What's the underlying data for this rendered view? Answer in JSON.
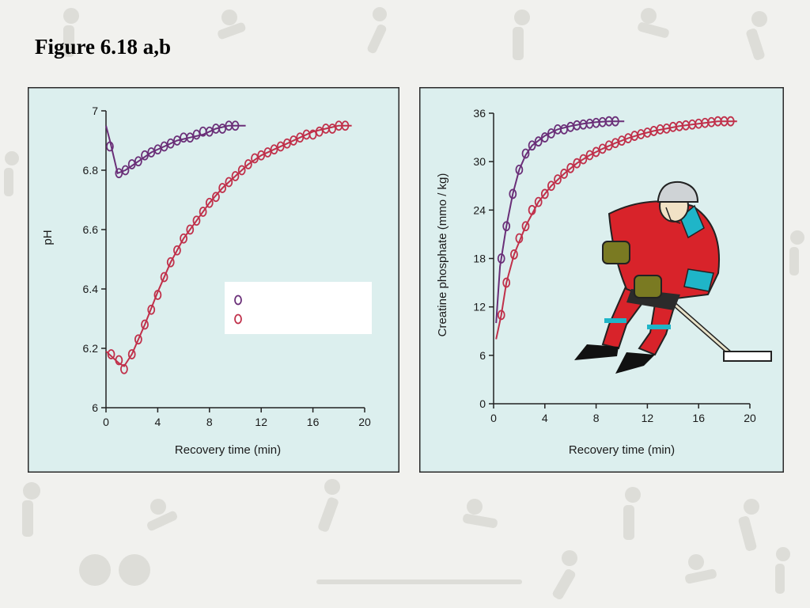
{
  "slide": {
    "title": "Figure 6.18 a,b"
  },
  "colors": {
    "panel_bg": "#dcefee",
    "panel_border": "#2a2a2a",
    "series_purple": "#6a2f78",
    "series_red": "#c0304a",
    "legend_bg": "#ffffff"
  },
  "illustration": {
    "name": "hockey-player-icon"
  },
  "chart_data": [
    {
      "id": "a",
      "type": "scatter",
      "title": "",
      "xlabel": "Recovery time (min)",
      "ylabel": "pH",
      "xlim": [
        0,
        20
      ],
      "ylim": [
        6,
        7
      ],
      "xticks": [
        "0",
        "4",
        "8",
        "12",
        "16",
        "20"
      ],
      "yticks": [
        "6",
        "6.2",
        "6.4",
        "6.6",
        "6.8",
        "7"
      ],
      "legend": {
        "placement": "center-right",
        "entries": []
      },
      "series": [
        {
          "color": "#6a2f78",
          "x": [
            0.3,
            1.0,
            1.5,
            2.0,
            2.5,
            3.0,
            3.5,
            4.0,
            4.5,
            5.0,
            5.5,
            6.0,
            6.5,
            7.0,
            7.5,
            8.0,
            8.5,
            9.0,
            9.5,
            10.0
          ],
          "y": [
            6.88,
            6.79,
            6.8,
            6.82,
            6.83,
            6.85,
            6.86,
            6.87,
            6.88,
            6.89,
            6.9,
            6.91,
            6.91,
            6.92,
            6.93,
            6.93,
            6.94,
            6.94,
            6.95,
            6.95
          ],
          "curve_x": [
            0,
            0.3,
            0.9,
            1.5,
            2.5,
            3.5,
            4.5,
            5.5,
            6.5,
            7.5,
            8.5,
            9.5,
            10.8
          ],
          "curve_y": [
            6.95,
            6.9,
            6.79,
            6.8,
            6.83,
            6.86,
            6.88,
            6.9,
            6.91,
            6.92,
            6.94,
            6.95,
            6.95
          ]
        },
        {
          "color": "#c0304a",
          "x": [
            0.4,
            1.0,
            1.4,
            2.0,
            2.5,
            3.0,
            3.5,
            4.0,
            4.5,
            5.0,
            5.5,
            6.0,
            6.5,
            7.0,
            7.5,
            8.0,
            8.5,
            9.0,
            9.5,
            10.0,
            10.5,
            11.0,
            11.5,
            12.0,
            12.5,
            13.0,
            13.5,
            14.0,
            14.5,
            15.0,
            15.5,
            16.0,
            16.5,
            17.0,
            17.5,
            18.0,
            18.5
          ],
          "y": [
            6.18,
            6.16,
            6.13,
            6.18,
            6.23,
            6.28,
            6.33,
            6.38,
            6.44,
            6.49,
            6.53,
            6.57,
            6.6,
            6.63,
            6.66,
            6.69,
            6.71,
            6.74,
            6.76,
            6.78,
            6.8,
            6.82,
            6.84,
            6.85,
            6.86,
            6.87,
            6.88,
            6.89,
            6.9,
            6.91,
            6.92,
            6.92,
            6.93,
            6.94,
            6.94,
            6.95,
            6.95
          ],
          "curve_x": [
            0,
            0.5,
            1.0,
            1.4,
            2.0,
            3.0,
            4.0,
            5.0,
            6.0,
            7.0,
            8.0,
            9.0,
            10.0,
            11.0,
            12.0,
            13.0,
            14.0,
            15.0,
            16.0,
            17.0,
            18.0,
            19.0
          ],
          "curve_y": [
            6.19,
            6.17,
            6.15,
            6.14,
            6.18,
            6.28,
            6.39,
            6.49,
            6.57,
            6.63,
            6.69,
            6.74,
            6.78,
            6.82,
            6.85,
            6.87,
            6.89,
            6.91,
            6.93,
            6.94,
            6.95,
            6.95
          ]
        }
      ]
    },
    {
      "id": "b",
      "type": "scatter",
      "title": "",
      "xlabel": "Recovery time (min)",
      "ylabel": "Creatine phosphate (mmo / kg)",
      "xlim": [
        0,
        20
      ],
      "ylim": [
        0,
        36
      ],
      "xticks": [
        "0",
        "4",
        "8",
        "12",
        "16",
        "20"
      ],
      "yticks": [
        "0",
        "6",
        "12",
        "18",
        "24",
        "30",
        "36"
      ],
      "series": [
        {
          "color": "#6a2f78",
          "x": [
            0.6,
            1.0,
            1.5,
            2.0,
            2.5,
            3.0,
            3.5,
            4.0,
            4.5,
            5.0,
            5.5,
            6.0,
            6.5,
            7.0,
            7.5,
            8.0,
            8.5,
            9.0,
            9.5
          ],
          "y": [
            18,
            22,
            26,
            29,
            31,
            32,
            32.5,
            33,
            33.5,
            34,
            34,
            34.3,
            34.5,
            34.6,
            34.7,
            34.8,
            34.9,
            35,
            35
          ],
          "curve_x": [
            0.2,
            0.5,
            1.0,
            1.5,
            2.0,
            2.5,
            3.0,
            4.0,
            5.0,
            6.0,
            7.0,
            8.0,
            9.0,
            10.2
          ],
          "curve_y": [
            10,
            17,
            22,
            26,
            29,
            30.8,
            32,
            33.2,
            34,
            34.4,
            34.7,
            34.9,
            35,
            35
          ]
        },
        {
          "color": "#c0304a",
          "x": [
            0.6,
            1.0,
            1.6,
            2.0,
            2.5,
            3.0,
            3.5,
            4.0,
            4.5,
            5.0,
            5.5,
            6.0,
            6.5,
            7.0,
            7.5,
            8.0,
            8.5,
            9.0,
            9.5,
            10.0,
            10.5,
            11.0,
            11.5,
            12.0,
            12.5,
            13.0,
            13.5,
            14.0,
            14.5,
            15.0,
            15.5,
            16.0,
            16.5,
            17.0,
            17.5,
            18.0,
            18.5
          ],
          "y": [
            11,
            15,
            18.5,
            20.5,
            22,
            24,
            25,
            26,
            27,
            27.8,
            28.5,
            29.2,
            29.8,
            30.3,
            30.8,
            31.2,
            31.6,
            32,
            32.3,
            32.6,
            32.9,
            33.2,
            33.4,
            33.6,
            33.8,
            34,
            34.1,
            34.3,
            34.4,
            34.5,
            34.6,
            34.7,
            34.8,
            34.9,
            35,
            35,
            35
          ],
          "curve_x": [
            0.2,
            0.6,
            1.0,
            1.6,
            2.5,
            3.5,
            4.5,
            5.5,
            6.5,
            7.5,
            8.5,
            9.5,
            10.5,
            11.5,
            12.5,
            13.5,
            14.5,
            15.5,
            16.5,
            17.5,
            19.0
          ],
          "curve_y": [
            8,
            11,
            15,
            18.5,
            22,
            25,
            27,
            28.5,
            29.8,
            30.8,
            31.6,
            32.3,
            32.9,
            33.4,
            33.8,
            34.1,
            34.4,
            34.6,
            34.8,
            35,
            35
          ]
        }
      ]
    }
  ]
}
